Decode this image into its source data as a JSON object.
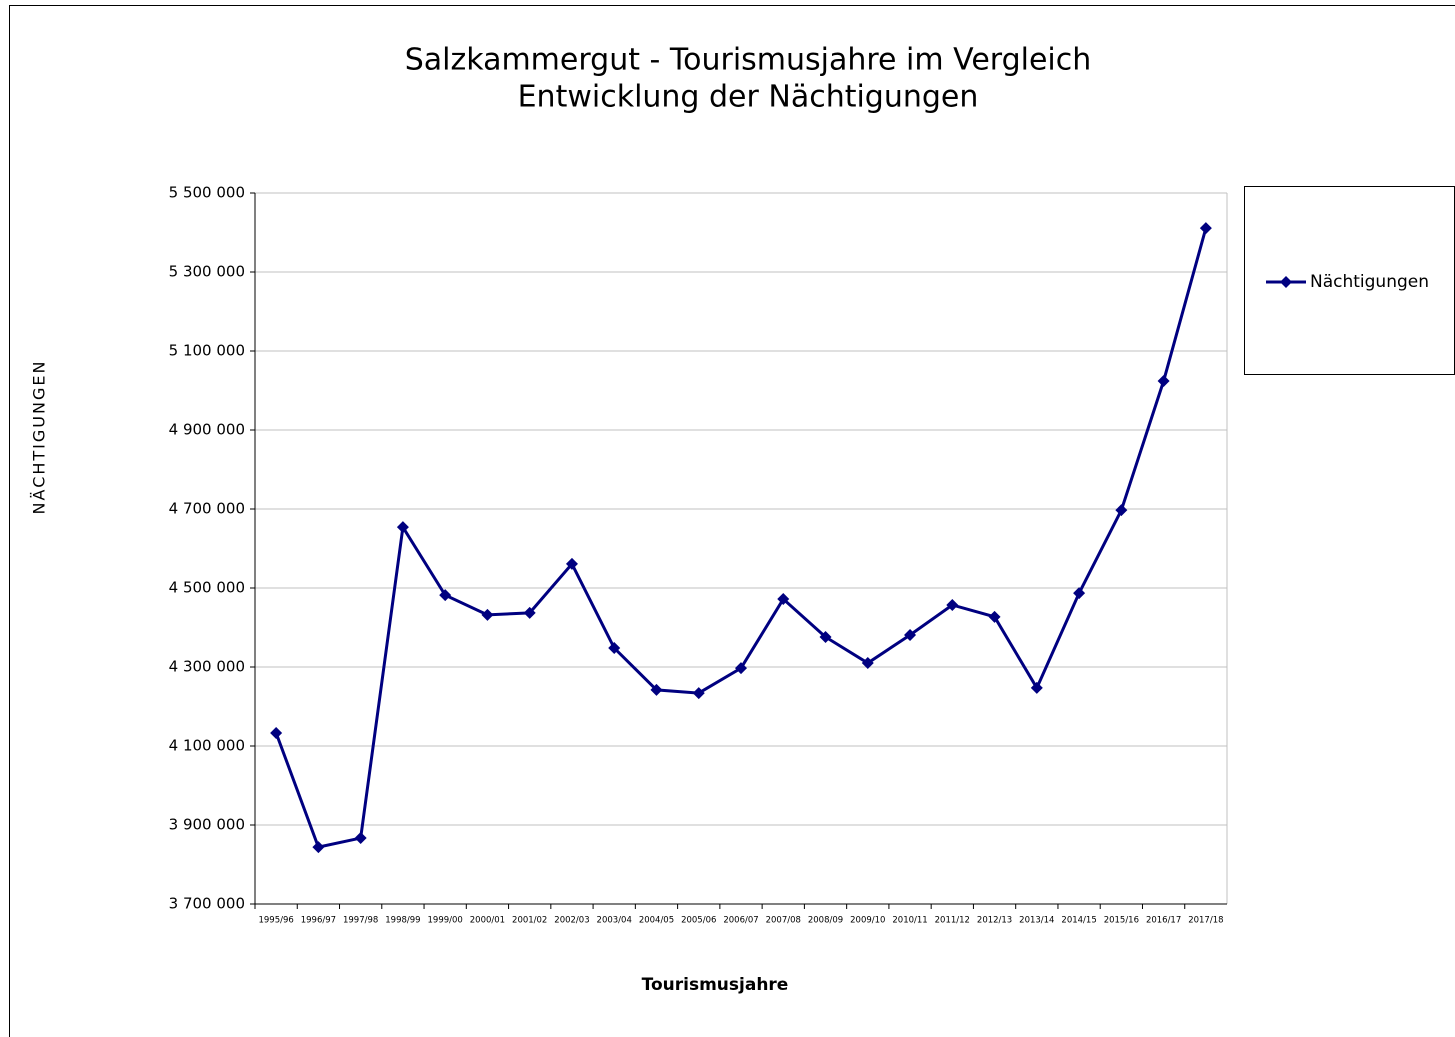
{
  "chart_data": {
    "type": "line",
    "title": "Salzkammergut - Tourismusjahre im Vergleich",
    "subtitle": "Entwicklung der Nächtigungen",
    "x_label": "Tourismusjahre",
    "y_label": "NÄCHTIGUNGEN",
    "categories": [
      "1995/96",
      "1996/97",
      "1997/98",
      "1998/99",
      "1999/00",
      "2000/01",
      "2001/02",
      "2002/03",
      "2003/04",
      "2004/05",
      "2005/06",
      "2006/07",
      "2007/08",
      "2008/09",
      "2009/10",
      "2010/11",
      "2011/12",
      "2012/13",
      "2013/14",
      "2014/15",
      "2015/16",
      "2016/17",
      "2017/18"
    ],
    "series": [
      {
        "name": "Nächtigungen",
        "color": "#000080",
        "values": [
          4133000,
          3844000,
          3867000,
          4654000,
          4482000,
          4432000,
          4437000,
          4561000,
          4348000,
          4242000,
          4234000,
          4297000,
          4472000,
          4376000,
          4310000,
          4381000,
          4457000,
          4427000,
          4247000,
          4487000,
          4697000,
          5024000,
          5411000
        ]
      }
    ],
    "ylim": [
      3700000,
      5500000
    ],
    "yticks": [
      {
        "value": 3700000,
        "label": "3 700 000"
      },
      {
        "value": 3900000,
        "label": "3 900 000"
      },
      {
        "value": 4100000,
        "label": "4 100 000"
      },
      {
        "value": 4300000,
        "label": "4 300 000"
      },
      {
        "value": 4500000,
        "label": "4 500 000"
      },
      {
        "value": 4700000,
        "label": "4 700 000"
      },
      {
        "value": 4900000,
        "label": "4 900 000"
      },
      {
        "value": 5100000,
        "label": "5 100 000"
      },
      {
        "value": 5300000,
        "label": "5 300 000"
      },
      {
        "value": 5500000,
        "label": "5 500 000"
      }
    ],
    "grid": true,
    "legend": "right"
  }
}
